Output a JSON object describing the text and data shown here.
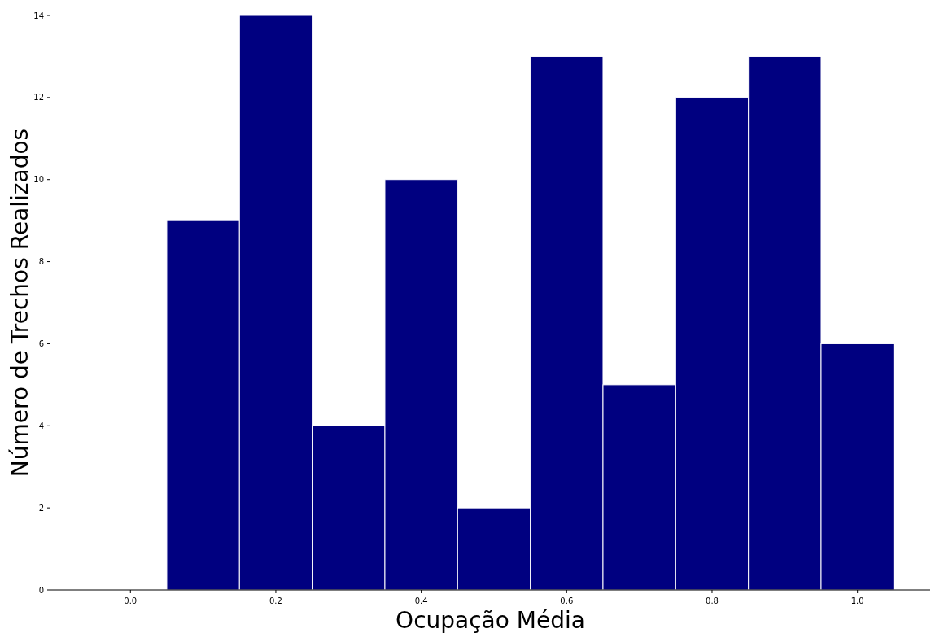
{
  "chart_data": {
    "type": "histogram",
    "xlabel": "Ocupação Média",
    "ylabel": "Número de Trechos Realizados",
    "bins": [
      0.05,
      0.15,
      0.25,
      0.35,
      0.45,
      0.55,
      0.65,
      0.75,
      0.85,
      0.95,
      1.05
    ],
    "values": [
      9,
      14,
      4,
      10,
      2,
      13,
      5,
      12,
      13,
      6
    ],
    "color": "#000080",
    "xlim": [
      -0.11,
      1.1
    ],
    "ylim": [
      0,
      14
    ],
    "xticks": [
      {
        "value": 0,
        "label": "0.0"
      },
      {
        "value": 0.2,
        "label": "0.2"
      },
      {
        "value": 0.4,
        "label": "0.4"
      },
      {
        "value": 0.6,
        "label": "0.6"
      },
      {
        "value": 0.8,
        "label": "0.8"
      },
      {
        "value": 1,
        "label": "1.0"
      }
    ],
    "yticks": [
      0,
      2,
      4,
      6,
      8,
      10,
      12,
      14
    ],
    "grid": false
  }
}
